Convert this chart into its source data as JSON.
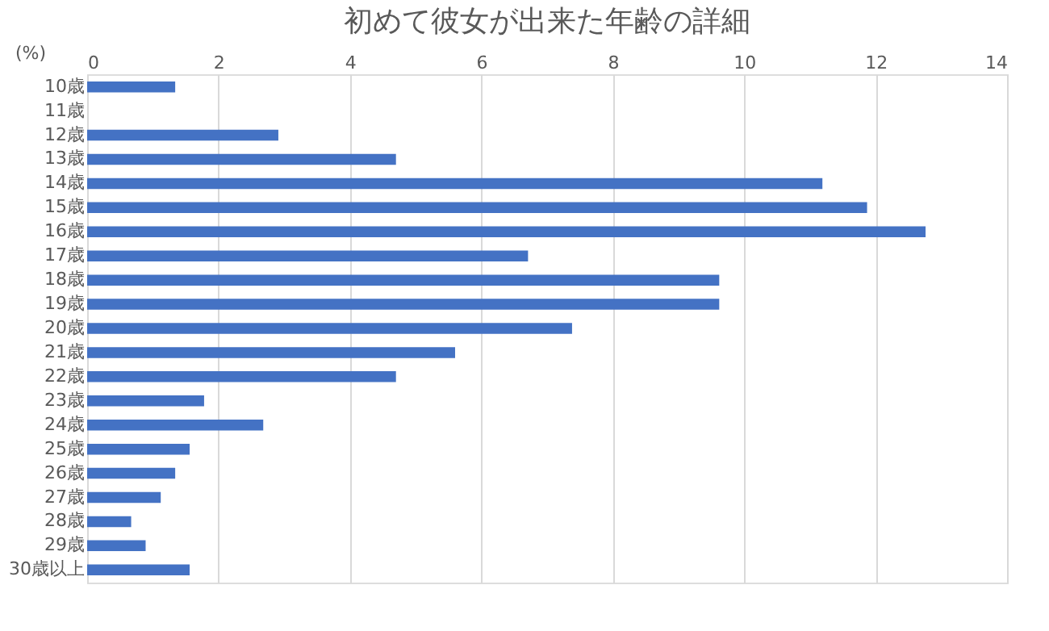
{
  "chart_data": {
    "type": "bar",
    "orientation": "horizontal",
    "title": "初めて彼女が出来た年齢の詳細",
    "xlabel": "(%)",
    "categories": [
      "10歳",
      "11歳",
      "12歳",
      "13歳",
      "14歳",
      "15歳",
      "16歳",
      "17歳",
      "18歳",
      "19歳",
      "20歳",
      "21歳",
      "22歳",
      "23歳",
      "24歳",
      "25歳",
      "26歳",
      "27歳",
      "28歳",
      "29歳",
      "30歳以上"
    ],
    "values": [
      1.34,
      null,
      2.91,
      4.7,
      11.19,
      11.87,
      12.76,
      6.71,
      9.62,
      9.62,
      7.38,
      5.6,
      4.7,
      1.78,
      2.68,
      1.56,
      1.34,
      1.12,
      0.67,
      0.89,
      1.56
    ],
    "color": "#4472c4",
    "xlim": [
      0,
      14
    ],
    "xticks": [
      0,
      2,
      4,
      6,
      8,
      10,
      12,
      14
    ],
    "grid": "x"
  }
}
